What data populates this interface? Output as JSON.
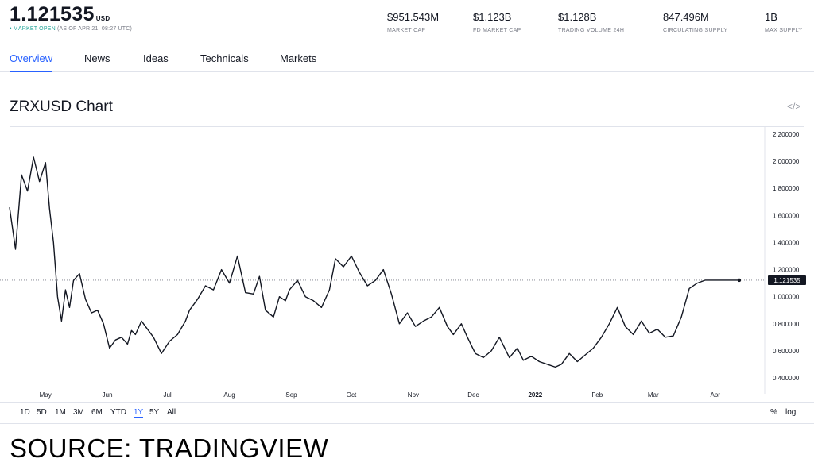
{
  "header": {
    "price": "1.121535",
    "currency": "USD",
    "status_open": "• MARKET OPEN",
    "status_time": "(AS OF APR 21, 08:27 UTC)",
    "stats": [
      {
        "value": "$951.543M",
        "label": "MARKET CAP"
      },
      {
        "value": "$1.123B",
        "label": "FD MARKET CAP"
      },
      {
        "value": "$1.128B",
        "label": "TRADING VOLUME 24H"
      },
      {
        "value": "847.496M",
        "label": "CIRCULATING SUPPLY"
      },
      {
        "value": "1B",
        "label": "MAX SUPPLY"
      }
    ]
  },
  "tabs": [
    "Overview",
    "News",
    "Ideas",
    "Technicals",
    "Markets"
  ],
  "active_tab": "Overview",
  "chart_section": {
    "title": "ZRXUSD Chart",
    "embed_icon": "code-icon"
  },
  "ranges": [
    "1D",
    "5D",
    "1M",
    "3M",
    "6M",
    "YTD",
    "1Y",
    "5Y",
    "All"
  ],
  "active_range": "1Y",
  "scale_options": [
    "%",
    "log"
  ],
  "source": "SOURCE: TRADINGVIEW",
  "colors": {
    "line": "#131722",
    "accent": "#2962ff",
    "market_open": "#26a69a"
  },
  "chart_data": {
    "type": "line",
    "title": "ZRXUSD Chart",
    "x_ticks": [
      "May",
      "Jun",
      "Jul",
      "Aug",
      "Sep",
      "Oct",
      "Nov",
      "Dec",
      "2022",
      "Feb",
      "Mar",
      "Apr"
    ],
    "y_ticks": [
      "2.200000",
      "2.000000",
      "1.800000",
      "1.600000",
      "1.400000",
      "1.200000",
      "1.000000",
      "0.800000",
      "0.600000",
      "0.400000"
    ],
    "ylim": [
      0.4,
      2.2
    ],
    "last_value": 1.121535,
    "last_label": "1.121535",
    "grid": false,
    "x": [
      "2021-04-21",
      "2021-04-24",
      "2021-04-27",
      "2021-04-30",
      "2021-05-03",
      "2021-05-06",
      "2021-05-09",
      "2021-05-11",
      "2021-05-13",
      "2021-05-15",
      "2021-05-17",
      "2021-05-19",
      "2021-05-21",
      "2021-05-23",
      "2021-05-26",
      "2021-05-29",
      "2021-06-01",
      "2021-06-04",
      "2021-06-07",
      "2021-06-10",
      "2021-06-13",
      "2021-06-16",
      "2021-06-19",
      "2021-06-21",
      "2021-06-23",
      "2021-06-26",
      "2021-06-29",
      "2021-07-02",
      "2021-07-06",
      "2021-07-10",
      "2021-07-14",
      "2021-07-18",
      "2021-07-20",
      "2021-07-24",
      "2021-07-28",
      "2021-08-01",
      "2021-08-05",
      "2021-08-09",
      "2021-08-13",
      "2021-08-17",
      "2021-08-21",
      "2021-08-24",
      "2021-08-27",
      "2021-08-31",
      "2021-09-03",
      "2021-09-06",
      "2021-09-08",
      "2021-09-12",
      "2021-09-16",
      "2021-09-20",
      "2021-09-24",
      "2021-09-28",
      "2021-10-01",
      "2021-10-05",
      "2021-10-09",
      "2021-10-13",
      "2021-10-17",
      "2021-10-21",
      "2021-10-25",
      "2021-10-29",
      "2021-11-02",
      "2021-11-06",
      "2021-11-10",
      "2021-11-14",
      "2021-11-18",
      "2021-11-22",
      "2021-11-26",
      "2021-11-29",
      "2021-12-03",
      "2021-12-06",
      "2021-12-10",
      "2021-12-14",
      "2021-12-18",
      "2021-12-22",
      "2021-12-27",
      "2021-12-31",
      "2022-01-03",
      "2022-01-07",
      "2022-01-11",
      "2022-01-15",
      "2022-01-19",
      "2022-01-22",
      "2022-01-26",
      "2022-01-30",
      "2022-02-03",
      "2022-02-07",
      "2022-02-11",
      "2022-02-15",
      "2022-02-19",
      "2022-02-23",
      "2022-02-27",
      "2022-03-03",
      "2022-03-07",
      "2022-03-11",
      "2022-03-15",
      "2022-03-19",
      "2022-03-23",
      "2022-03-27",
      "2022-03-31",
      "2022-04-04",
      "2022-04-08",
      "2022-04-12",
      "2022-04-14",
      "2022-04-17",
      "2022-04-19",
      "2022-04-21"
    ],
    "y": [
      1.66,
      1.35,
      1.9,
      1.78,
      2.03,
      1.85,
      1.99,
      1.65,
      1.4,
      1.0,
      0.82,
      1.05,
      0.92,
      1.12,
      1.17,
      0.98,
      0.88,
      0.9,
      0.8,
      0.62,
      0.68,
      0.7,
      0.65,
      0.75,
      0.72,
      0.82,
      0.76,
      0.7,
      0.58,
      0.67,
      0.72,
      0.82,
      0.9,
      0.98,
      1.08,
      1.05,
      1.2,
      1.1,
      1.3,
      1.03,
      1.02,
      1.15,
      0.9,
      0.85,
      1.0,
      0.97,
      1.05,
      1.12,
      1.0,
      0.97,
      0.92,
      1.05,
      1.28,
      1.22,
      1.3,
      1.18,
      1.08,
      1.12,
      1.2,
      1.02,
      0.8,
      0.88,
      0.78,
      0.82,
      0.85,
      0.92,
      0.78,
      0.72,
      0.8,
      0.7,
      0.58,
      0.55,
      0.6,
      0.7,
      0.55,
      0.62,
      0.53,
      0.56,
      0.52,
      0.5,
      0.48,
      0.5,
      0.58,
      0.52,
      0.57,
      0.62,
      0.7,
      0.8,
      0.92,
      0.78,
      0.72,
      0.82,
      0.73,
      0.76,
      0.7,
      0.71,
      0.85,
      1.06,
      1.1,
      1.122,
      1.122,
      1.122,
      1.122,
      1.122,
      1.122,
      1.121535
    ]
  }
}
